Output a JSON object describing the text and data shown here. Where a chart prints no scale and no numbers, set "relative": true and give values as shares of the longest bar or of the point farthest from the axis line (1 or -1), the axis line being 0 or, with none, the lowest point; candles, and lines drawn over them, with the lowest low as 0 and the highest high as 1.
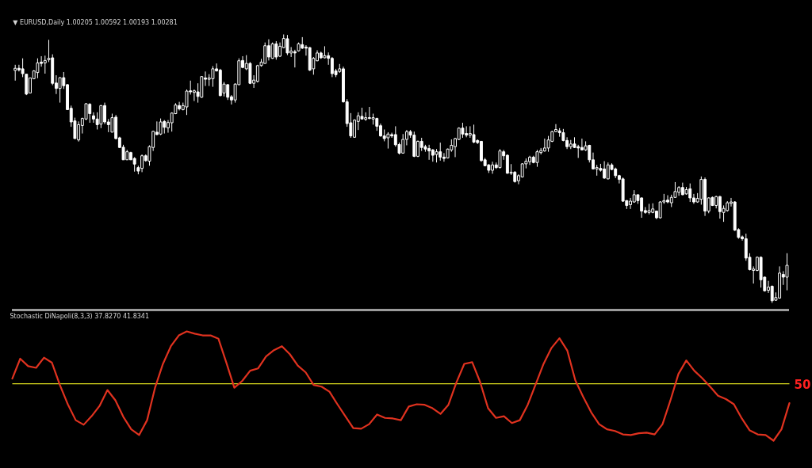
{
  "chart_data": [
    {
      "type": "candlestick",
      "title": "▼ EURUSD,Daily  1.00205 1.00592 1.00193 1.00281",
      "relative": true,
      "color": "#ffffff",
      "categories": [
        null,
        null,
        null,
        null,
        null,
        null,
        null,
        null,
        null,
        null,
        null,
        null,
        null,
        null,
        null,
        null,
        null,
        null,
        null,
        null,
        null,
        null,
        null,
        null,
        null,
        null,
        null,
        null,
        null,
        null,
        null,
        null,
        null,
        null,
        null,
        null,
        null,
        null,
        null,
        null,
        null,
        null,
        null,
        null,
        null,
        null,
        null,
        null,
        null,
        null,
        null,
        null,
        null,
        null,
        null,
        null,
        null,
        null,
        null,
        null,
        null,
        null,
        null,
        null,
        null,
        null,
        null,
        null,
        null,
        null,
        null,
        null,
        null,
        null,
        null,
        null,
        null,
        null,
        null,
        null,
        null,
        null,
        null,
        null,
        null,
        null,
        null,
        null,
        null,
        null,
        null,
        null,
        null,
        null,
        null,
        null,
        null,
        null,
        null,
        null,
        null,
        null,
        null,
        null,
        null,
        null,
        null,
        null,
        null,
        null,
        null,
        null,
        null,
        null,
        null,
        null,
        null,
        null,
        null,
        null,
        null,
        null,
        null,
        null,
        null,
        null,
        null,
        null,
        null,
        null,
        null,
        null,
        null,
        null,
        null,
        null,
        null,
        null,
        null,
        null,
        null,
        null,
        null,
        null,
        null,
        null,
        null,
        null,
        null,
        null,
        null,
        null,
        null,
        null,
        null,
        null,
        null,
        null,
        null,
        null,
        null,
        null,
        null,
        null,
        null,
        null,
        null,
        null,
        null,
        null,
        null,
        null,
        null,
        null,
        null,
        null,
        null,
        null,
        null,
        null,
        null,
        null,
        null,
        null,
        null,
        null,
        null,
        null,
        null,
        null,
        null,
        null,
        null,
        null,
        null,
        null,
        null,
        null,
        null,
        null,
        null,
        null,
        null,
        null,
        null,
        null,
        null,
        null
      ],
      "ohlc": [
        [
          0.866,
          0.887,
          0.828,
          0.874
        ],
        [
          0.874,
          0.887,
          0.862,
          0.868
        ],
        [
          0.872,
          0.911,
          0.841,
          0.854
        ],
        [
          0.852,
          0.852,
          0.774,
          0.778
        ],
        [
          0.782,
          0.838,
          0.782,
          0.838
        ],
        [
          0.835,
          0.867,
          0.833,
          0.864
        ],
        [
          0.858,
          0.911,
          0.837,
          0.894
        ],
        [
          0.897,
          0.919,
          0.88,
          0.892
        ],
        [
          0.894,
          0.921,
          0.854,
          0.903
        ],
        [
          0.906,
          0.98,
          0.897,
          0.911
        ],
        [
          0.913,
          0.926,
          0.811,
          0.818
        ],
        [
          0.819,
          0.848,
          0.778,
          0.799
        ],
        [
          0.799,
          0.841,
          0.746,
          0.839
        ],
        [
          0.839,
          0.86,
          0.797,
          0.809
        ],
        [
          0.813,
          0.815,
          0.72,
          0.72
        ],
        [
          0.725,
          0.735,
          0.656,
          0.674
        ],
        [
          0.678,
          0.69,
          0.612,
          0.612
        ],
        [
          0.607,
          0.676,
          0.601,
          0.664
        ],
        [
          0.661,
          0.69,
          0.631,
          0.687
        ],
        [
          0.685,
          0.744,
          0.681,
          0.742
        ],
        [
          0.74,
          0.744,
          0.671,
          0.705
        ],
        [
          0.697,
          0.71,
          0.671,
          0.685
        ],
        [
          0.685,
          0.71,
          0.646,
          0.664
        ],
        [
          0.666,
          0.737,
          0.651,
          0.735
        ],
        [
          0.735,
          0.746,
          0.666,
          0.674
        ],
        [
          0.674,
          0.685,
          0.636,
          0.664
        ],
        [
          0.636,
          0.705,
          0.636,
          0.69
        ],
        [
          0.692,
          0.7,
          0.609,
          0.612
        ],
        [
          0.615,
          0.619,
          0.577,
          0.579
        ],
        [
          0.58,
          0.589,
          0.533,
          0.533
        ],
        [
          0.533,
          0.57,
          0.533,
          0.563
        ],
        [
          0.56,
          0.563,
          0.533,
          0.533
        ],
        [
          0.538,
          0.543,
          0.489,
          0.517
        ],
        [
          0.504,
          0.511,
          0.479,
          0.491
        ],
        [
          0.501,
          0.553,
          0.487,
          0.548
        ],
        [
          0.548,
          0.553,
          0.526,
          0.53
        ],
        [
          0.528,
          0.587,
          0.511,
          0.582
        ],
        [
          0.579,
          0.641,
          0.566,
          0.639
        ],
        [
          0.636,
          0.676,
          0.625,
          0.627
        ],
        [
          0.629,
          0.687,
          0.625,
          0.674
        ],
        [
          0.676,
          0.681,
          0.631,
          0.654
        ],
        [
          0.652,
          0.681,
          0.634,
          0.672
        ],
        [
          0.671,
          0.71,
          0.638,
          0.707
        ],
        [
          0.705,
          0.744,
          0.703,
          0.737
        ],
        [
          0.735,
          0.749,
          0.717,
          0.723
        ],
        [
          0.72,
          0.746,
          0.717,
          0.735
        ],
        [
          0.73,
          0.795,
          0.7,
          0.789
        ],
        [
          0.79,
          0.828,
          0.776,
          0.786
        ],
        [
          0.784,
          0.795,
          0.752,
          0.79
        ],
        [
          0.786,
          0.818,
          0.746,
          0.769
        ],
        [
          0.766,
          0.845,
          0.764,
          0.843
        ],
        [
          0.838,
          0.862,
          0.808,
          0.833
        ],
        [
          0.833,
          0.852,
          0.808,
          0.838
        ],
        [
          0.835,
          0.882,
          0.805,
          0.872
        ],
        [
          0.872,
          0.892,
          0.862,
          0.864
        ],
        [
          0.867,
          0.872,
          0.77,
          0.772
        ],
        [
          0.782,
          0.823,
          0.769,
          0.815
        ],
        [
          0.813,
          0.815,
          0.756,
          0.766
        ],
        [
          0.768,
          0.774,
          0.739,
          0.756
        ],
        [
          0.756,
          0.818,
          0.746,
          0.815
        ],
        [
          0.813,
          0.911,
          0.811,
          0.902
        ],
        [
          0.903,
          0.919,
          0.874,
          0.877
        ],
        [
          0.872,
          0.923,
          0.867,
          0.892
        ],
        [
          0.892,
          0.897,
          0.815,
          0.818
        ],
        [
          0.818,
          0.848,
          0.801,
          0.83
        ],
        [
          0.825,
          0.887,
          0.821,
          0.884
        ],
        [
          0.884,
          0.909,
          0.88,
          0.897
        ],
        [
          0.892,
          0.97,
          0.892,
          0.958
        ],
        [
          0.958,
          0.982,
          0.903,
          0.916
        ],
        [
          0.911,
          0.97,
          0.909,
          0.965
        ],
        [
          0.965,
          0.975,
          0.906,
          0.916
        ],
        [
          0.919,
          0.97,
          0.916,
          0.956
        ],
        [
          0.951,
          1.0,
          0.949,
          0.985
        ],
        [
          0.984,
          0.998,
          0.923,
          0.931
        ],
        [
          0.931,
          0.953,
          0.916,
          0.938
        ],
        [
          0.936,
          0.943,
          0.877,
          0.931
        ],
        [
          0.939,
          0.97,
          0.936,
          0.965
        ],
        [
          0.962,
          0.99,
          0.946,
          0.949
        ],
        [
          0.953,
          0.96,
          0.921,
          0.949
        ],
        [
          0.951,
          0.953,
          0.864,
          0.867
        ],
        [
          0.872,
          0.916,
          0.85,
          0.911
        ],
        [
          0.902,
          0.941,
          0.9,
          0.931
        ],
        [
          0.931,
          0.936,
          0.909,
          0.913
        ],
        [
          0.913,
          0.956,
          0.911,
          0.921
        ],
        [
          0.921,
          0.933,
          0.887,
          0.911
        ],
        [
          0.911,
          0.916,
          0.841,
          0.854
        ],
        [
          0.864,
          0.872,
          0.841,
          0.85
        ],
        [
          0.862,
          0.89,
          0.857,
          0.872
        ],
        [
          0.872,
          0.88,
          0.746,
          0.749
        ],
        [
          0.749,
          0.759,
          0.656,
          0.668
        ],
        [
          0.671,
          0.707,
          0.615,
          0.622
        ],
        [
          0.617,
          0.684,
          0.615,
          0.681
        ],
        [
          0.676,
          0.71,
          0.644,
          0.697
        ],
        [
          0.695,
          0.727,
          0.684,
          0.685
        ],
        [
          0.684,
          0.71,
          0.678,
          0.69
        ],
        [
          0.69,
          0.73,
          0.684,
          0.687
        ],
        [
          0.685,
          0.705,
          0.664,
          0.69
        ],
        [
          0.687,
          0.69,
          0.641,
          0.658
        ],
        [
          0.66,
          0.668,
          0.619,
          0.622
        ],
        [
          0.622,
          0.646,
          0.602,
          0.612
        ],
        [
          0.615,
          0.636,
          0.575,
          0.629
        ],
        [
          0.627,
          0.634,
          0.615,
          0.622
        ],
        [
          0.627,
          0.658,
          0.582,
          0.589
        ],
        [
          0.59,
          0.597,
          0.553,
          0.558
        ],
        [
          0.558,
          0.629,
          0.556,
          0.609
        ],
        [
          0.609,
          0.644,
          0.587,
          0.638
        ],
        [
          0.638,
          0.644,
          0.615,
          0.625
        ],
        [
          0.625,
          0.638,
          0.543,
          0.546
        ],
        [
          0.546,
          0.605,
          0.543,
          0.602
        ],
        [
          0.602,
          0.615,
          0.566,
          0.579
        ],
        [
          0.582,
          0.589,
          0.563,
          0.573
        ],
        [
          0.575,
          0.589,
          0.533,
          0.566
        ],
        [
          0.57,
          0.573,
          0.526,
          0.55
        ],
        [
          0.553,
          0.573,
          0.523,
          0.563
        ],
        [
          0.563,
          0.597,
          0.53,
          0.543
        ],
        [
          0.543,
          0.558,
          0.526,
          0.538
        ],
        [
          0.54,
          0.575,
          0.538,
          0.573
        ],
        [
          0.57,
          0.609,
          0.563,
          0.587
        ],
        [
          0.582,
          0.615,
          0.543,
          0.612
        ],
        [
          0.609,
          0.654,
          0.607,
          0.651
        ],
        [
          0.651,
          0.671,
          0.615,
          0.629
        ],
        [
          0.631,
          0.658,
          0.617,
          0.625
        ],
        [
          0.625,
          0.658,
          0.615,
          0.631
        ],
        [
          0.627,
          0.664,
          0.595,
          0.599
        ],
        [
          0.605,
          0.609,
          0.592,
          0.597
        ],
        [
          0.602,
          0.602,
          0.526,
          0.53
        ],
        [
          0.533,
          0.54,
          0.509,
          0.511
        ],
        [
          0.514,
          0.517,
          0.484,
          0.494
        ],
        [
          0.494,
          0.526,
          0.481,
          0.514
        ],
        [
          0.514,
          0.523,
          0.499,
          0.504
        ],
        [
          0.504,
          0.573,
          0.501,
          0.566
        ],
        [
          0.563,
          0.57,
          0.533,
          0.548
        ],
        [
          0.55,
          0.553,
          0.481,
          0.483
        ],
        [
          0.483,
          0.517,
          0.477,
          0.487
        ],
        [
          0.487,
          0.491,
          0.448,
          0.452
        ],
        [
          0.455,
          0.479,
          0.442,
          0.474
        ],
        [
          0.469,
          0.52,
          0.467,
          0.518
        ],
        [
          0.518,
          0.538,
          0.501,
          0.528
        ],
        [
          0.526,
          0.548,
          0.514,
          0.543
        ],
        [
          0.543,
          0.548,
          0.52,
          0.523
        ],
        [
          0.523,
          0.57,
          0.507,
          0.563
        ],
        [
          0.56,
          0.577,
          0.553,
          0.568
        ],
        [
          0.566,
          0.612,
          0.563,
          0.577
        ],
        [
          0.577,
          0.622,
          0.563,
          0.607
        ],
        [
          0.602,
          0.641,
          0.599,
          0.638
        ],
        [
          0.638,
          0.666,
          0.636,
          0.646
        ],
        [
          0.641,
          0.651,
          0.619,
          0.634
        ],
        [
          0.634,
          0.648,
          0.602,
          0.605
        ],
        [
          0.605,
          0.617,
          0.573,
          0.582
        ],
        [
          0.582,
          0.607,
          0.573,
          0.592
        ],
        [
          0.592,
          0.617,
          0.577,
          0.579
        ],
        [
          0.582,
          0.589,
          0.54,
          0.577
        ],
        [
          0.579,
          0.612,
          0.568,
          0.57
        ],
        [
          0.57,
          0.602,
          0.566,
          0.585
        ],
        [
          0.587,
          0.589,
          0.523,
          0.533
        ],
        [
          0.533,
          0.56,
          0.497,
          0.499
        ],
        [
          0.499,
          0.514,
          0.474,
          0.504
        ],
        [
          0.501,
          0.518,
          0.489,
          0.494
        ],
        [
          0.499,
          0.528,
          0.462,
          0.465
        ],
        [
          0.462,
          0.523,
          0.46,
          0.514
        ],
        [
          0.514,
          0.52,
          0.494,
          0.497
        ],
        [
          0.499,
          0.504,
          0.465,
          0.474
        ],
        [
          0.474,
          0.477,
          0.445,
          0.46
        ],
        [
          0.462,
          0.467,
          0.376,
          0.379
        ],
        [
          0.381,
          0.383,
          0.35,
          0.363
        ],
        [
          0.366,
          0.391,
          0.35,
          0.379
        ],
        [
          0.376,
          0.42,
          0.373,
          0.403
        ],
        [
          0.403,
          0.403,
          0.369,
          0.381
        ],
        [
          0.391,
          0.393,
          0.317,
          0.342
        ],
        [
          0.344,
          0.357,
          0.332,
          0.337
        ],
        [
          0.337,
          0.369,
          0.33,
          0.344
        ],
        [
          0.337,
          0.371,
          0.334,
          0.35
        ],
        [
          0.342,
          0.344,
          0.312,
          0.317
        ],
        [
          0.317,
          0.379,
          0.314,
          0.376
        ],
        [
          0.376,
          0.406,
          0.369,
          0.381
        ],
        [
          0.383,
          0.401,
          0.371,
          0.376
        ],
        [
          0.373,
          0.403,
          0.357,
          0.393
        ],
        [
          0.393,
          0.45,
          0.391,
          0.415
        ],
        [
          0.412,
          0.435,
          0.399,
          0.43
        ],
        [
          0.43,
          0.448,
          0.401,
          0.403
        ],
        [
          0.406,
          0.432,
          0.403,
          0.422
        ],
        [
          0.425,
          0.445,
          0.376,
          0.391
        ],
        [
          0.391,
          0.406,
          0.369,
          0.376
        ],
        [
          0.376,
          0.409,
          0.373,
          0.389
        ],
        [
          0.386,
          0.471,
          0.366,
          0.46
        ],
        [
          0.46,
          0.467,
          0.324,
          0.342
        ],
        [
          0.342,
          0.393,
          0.334,
          0.391
        ],
        [
          0.393,
          0.396,
          0.361,
          0.363
        ],
        [
          0.363,
          0.399,
          0.352,
          0.396
        ],
        [
          0.396,
          0.399,
          0.314,
          0.34
        ],
        [
          0.337,
          0.363,
          0.302,
          0.352
        ],
        [
          0.344,
          0.379,
          0.34,
          0.373
        ],
        [
          0.371,
          0.391,
          0.359,
          0.376
        ],
        [
          0.376,
          0.379,
          0.268,
          0.271
        ],
        [
          0.273,
          0.278,
          0.239,
          0.244
        ],
        [
          0.246,
          0.251,
          0.232,
          0.239
        ],
        [
          0.239,
          0.258,
          0.157,
          0.167
        ],
        [
          0.17,
          0.185,
          0.121,
          0.124
        ],
        [
          0.121,
          0.136,
          0.072,
          0.126
        ],
        [
          0.121,
          0.173,
          0.118,
          0.17
        ],
        [
          0.17,
          0.173,
          0.057,
          0.086
        ],
        [
          0.096,
          0.098,
          0.042,
          0.045
        ],
        [
          0.047,
          0.082,
          0.037,
          0.059
        ],
        [
          0.062,
          0.065,
          0.0,
          0.008
        ],
        [
          0.01,
          0.039,
          0.008,
          0.02
        ],
        [
          0.018,
          0.136,
          0.016,
          0.111
        ],
        [
          0.106,
          0.118,
          0.067,
          0.096
        ],
        [
          0.096,
          0.185,
          0.047,
          0.14
        ]
      ]
    },
    {
      "type": "line",
      "title": "Stochastic DiNapoli(8,3,3) 37.8270 41.8341",
      "relative": true,
      "categories": [
        null,
        null,
        null,
        null,
        null,
        null,
        null,
        null,
        null,
        null,
        null,
        null,
        null,
        null,
        null,
        null,
        null,
        null,
        null,
        null,
        null,
        null,
        null,
        null,
        null,
        null,
        null,
        null,
        null,
        null,
        null,
        null,
        null,
        null,
        null,
        null,
        null,
        null,
        null,
        null,
        null,
        null,
        null,
        null,
        null,
        null,
        null,
        null,
        null,
        null,
        null,
        null,
        null,
        null,
        null,
        null,
        null,
        null,
        null,
        null,
        null,
        null,
        null,
        null,
        null,
        null,
        null,
        null,
        null,
        null,
        null,
        null,
        null,
        null,
        null,
        null,
        null,
        null,
        null,
        null,
        null,
        null,
        null,
        null,
        null,
        null,
        null,
        null,
        null,
        null,
        null,
        null,
        null,
        null,
        null,
        null,
        null,
        null,
        null
      ],
      "series": [
        {
          "color": "#e0321f",
          "values": [
            0.09,
            0.44,
            0.31,
            0.28,
            0.46,
            0.37,
            -0.02,
            -0.36,
            -0.64,
            -0.72,
            -0.57,
            -0.39,
            -0.11,
            -0.29,
            -0.58,
            -0.8,
            -0.9,
            -0.64,
            -0.07,
            0.35,
            0.66,
            0.85,
            0.92,
            0.88,
            0.85,
            0.85,
            0.79,
            0.37,
            -0.07,
            0.05,
            0.23,
            0.27,
            0.48,
            0.59,
            0.66,
            0.52,
            0.32,
            0.2,
            -0.02,
            -0.05,
            -0.14,
            -0.36,
            -0.57,
            -0.78,
            -0.79,
            -0.71,
            -0.54,
            -0.6,
            -0.61,
            -0.64,
            -0.4,
            -0.36,
            -0.37,
            -0.43,
            -0.53,
            -0.37,
            0.02,
            0.35,
            0.38,
            0.03,
            -0.43,
            -0.6,
            -0.57,
            -0.69,
            -0.64,
            -0.37,
            -0.01,
            0.35,
            0.63,
            0.8,
            0.58,
            0.06,
            -0.23,
            -0.5,
            -0.71,
            -0.8,
            -0.83,
            -0.89,
            -0.9,
            -0.87,
            -0.86,
            -0.89,
            -0.71,
            -0.29,
            0.17,
            0.41,
            0.23,
            0.1,
            -0.05,
            -0.21,
            -0.27,
            -0.36,
            -0.61,
            -0.82,
            -0.89,
            -0.9,
            -1.0,
            -0.8,
            -0.34
          ]
        }
      ],
      "ref_lines": [
        {
          "axis": "y",
          "value": 0,
          "color": "#dede1e"
        }
      ],
      "annotations": [
        "50"
      ]
    }
  ]
}
